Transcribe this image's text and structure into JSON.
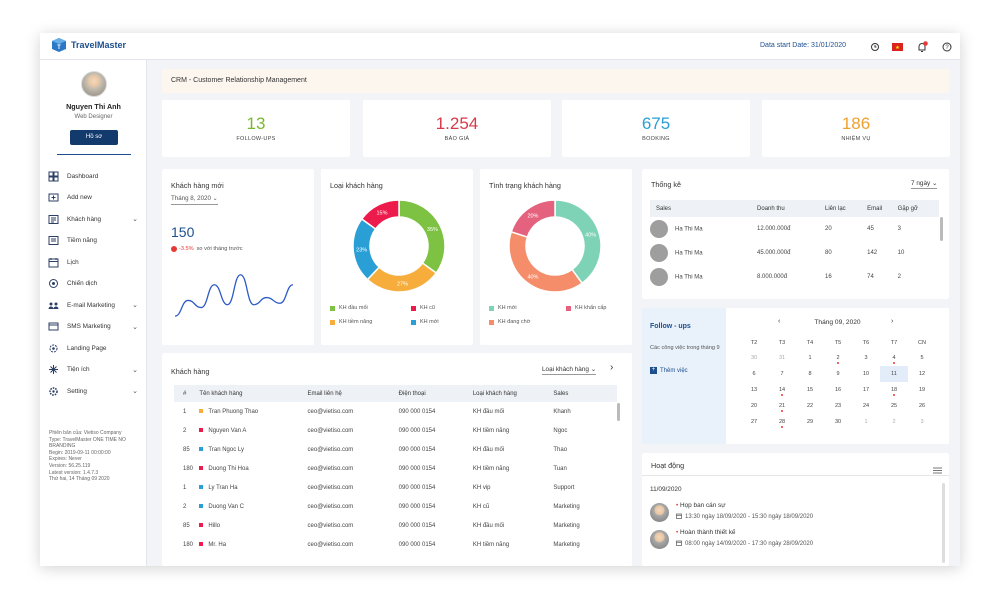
{
  "app": {
    "name": "TravelMaster",
    "data_start": "Data start Date: 31/01/2020"
  },
  "user": {
    "name": "Nguyen Thi Anh",
    "role": "Web Designer",
    "profile_btn": "Hồ sơ"
  },
  "nav": [
    {
      "label": "Dashboard",
      "icon": "dashboard-icon",
      "chev": false
    },
    {
      "label": "Add new",
      "icon": "add-new-icon",
      "chev": false
    },
    {
      "label": "Khách hàng",
      "icon": "customers-icon",
      "chev": true
    },
    {
      "label": "Tiềm năng",
      "icon": "potential-icon",
      "chev": false
    },
    {
      "label": "Lịch",
      "icon": "calendar-icon",
      "chev": false
    },
    {
      "label": "Chiến dịch",
      "icon": "campaign-icon",
      "chev": false
    },
    {
      "label": "E-mail Marketing",
      "icon": "email-icon",
      "chev": true
    },
    {
      "label": "SMS Marketing",
      "icon": "sms-icon",
      "chev": true
    },
    {
      "label": "Landing Page",
      "icon": "landing-icon",
      "chev": false
    },
    {
      "label": "Tiện ích",
      "icon": "utilities-icon",
      "chev": true
    },
    {
      "label": "Setting",
      "icon": "setting-icon",
      "chev": true
    }
  ],
  "side_info": [
    "Phiên bản của: Vietiso Company",
    "Type: TravelMaster ONE TIME NO",
    "BRANDING",
    "Begin: 2019-09-11 00:00:00",
    "Expires: Never",
    "Version: 56.25.119",
    "Latest version: 1.4.7.3",
    "Thứ hai, 14 Tháng 09 2020"
  ],
  "banner": "CRM - Customer Relationship Management",
  "stats": [
    {
      "value": "13",
      "label": "FOLLOW-UPS",
      "color": "#7cb82f"
    },
    {
      "value": "1.254",
      "label": "BÁO GIÁ",
      "color": "#d93a4a"
    },
    {
      "value": "675",
      "label": "BOOKING",
      "color": "#2a9fd6"
    },
    {
      "value": "186",
      "label": "NHIỆM VỤ",
      "color": "#f0a030"
    }
  ],
  "new_customers": {
    "title": "Khách hàng mới",
    "month": "Tháng 8, 2020",
    "value": "150",
    "change": "-3.5%",
    "change_text": "so với tháng trước",
    "sparkline": [
      18,
      40,
      30,
      62,
      34,
      76,
      34,
      44,
      36,
      62
    ]
  },
  "chart_data": [
    {
      "type": "pie",
      "title": "Loại khách hàng",
      "series": [
        {
          "name": "KH đầu mối",
          "value": 35,
          "label": "35%",
          "color": "#7dc242"
        },
        {
          "name": "KH tiềm năng",
          "value": 27,
          "label": "27%",
          "color": "#f6ad3c"
        },
        {
          "name": "KH mới",
          "value": 23,
          "label": "23%",
          "color": "#2a9fd6"
        },
        {
          "name": "KH cũ",
          "value": 15,
          "label": "15%",
          "color": "#ec1b4b"
        }
      ]
    },
    {
      "type": "pie",
      "title": "Tình trạng khách hàng",
      "series": [
        {
          "name": "KH mới",
          "value": 40,
          "label": "40%",
          "color": "#7ed3b7"
        },
        {
          "name": "KH đang chờ",
          "value": 40,
          "label": "40%",
          "color": "#f58d6b"
        },
        {
          "name": "KH khẩn cấp",
          "value": 20,
          "label": "20%",
          "color": "#e5627e"
        }
      ]
    }
  ],
  "stats_table": {
    "title": "Thống kê",
    "period": "7 ngày",
    "headers": [
      "Sales",
      "Doanh thu",
      "Liên lạc",
      "Email",
      "Gặp gỡ"
    ],
    "rows": [
      {
        "name": "Ha Thi Ma",
        "revenue": "12.000.000đ",
        "contacts": "20",
        "email": "45",
        "meet": "3"
      },
      {
        "name": "Ha Thi Ma",
        "revenue": "45.000.000đ",
        "contacts": "80",
        "email": "142",
        "meet": "10"
      },
      {
        "name": "Ha Thi Ma",
        "revenue": "8.000.000đ",
        "contacts": "16",
        "email": "74",
        "meet": "2"
      }
    ]
  },
  "followup": {
    "title": "Follow - ups",
    "text": "Các công việc trong tháng 9",
    "add": "Thêm việc"
  },
  "calendar": {
    "month": "Tháng 09, 2020",
    "days": [
      "T2",
      "T3",
      "T4",
      "T5",
      "T6",
      "T7",
      "CN"
    ],
    "weeks": [
      [
        {
          "d": "30",
          "m": true
        },
        {
          "d": "31",
          "m": true
        },
        {
          "d": "1"
        },
        {
          "d": "2",
          "e": true
        },
        {
          "d": "3"
        },
        {
          "d": "4",
          "e": true
        },
        {
          "d": "5"
        }
      ],
      [
        {
          "d": "6"
        },
        {
          "d": "7"
        },
        {
          "d": "8"
        },
        {
          "d": "9"
        },
        {
          "d": "10"
        },
        {
          "d": "11",
          "s": true
        },
        {
          "d": "12"
        }
      ],
      [
        {
          "d": "13"
        },
        {
          "d": "14",
          "e": true
        },
        {
          "d": "15"
        },
        {
          "d": "16"
        },
        {
          "d": "17"
        },
        {
          "d": "18",
          "e": true
        },
        {
          "d": "19"
        }
      ],
      [
        {
          "d": "20"
        },
        {
          "d": "21",
          "e": true
        },
        {
          "d": "22"
        },
        {
          "d": "23"
        },
        {
          "d": "24"
        },
        {
          "d": "25"
        },
        {
          "d": "26"
        }
      ],
      [
        {
          "d": "27"
        },
        {
          "d": "28",
          "e": true
        },
        {
          "d": "29"
        },
        {
          "d": "30"
        },
        {
          "d": "1",
          "m": true
        },
        {
          "d": "2",
          "m": true
        },
        {
          "d": "3",
          "m": true
        }
      ]
    ]
  },
  "customers": {
    "title": "Khách hàng",
    "filter": "Loại khách hàng",
    "headers": [
      "#",
      "Tên khách hàng",
      "Email liên hệ",
      "Điện thoại",
      "Loại khách hàng",
      "Sales"
    ],
    "rows": [
      {
        "no": "1",
        "name": "Tran Phuong Thao",
        "email": "ceo@vietiso.com",
        "phone": "090 000 0154",
        "type": "KH đầu mối",
        "sales": "Khanh",
        "color": "#f6ad3c"
      },
      {
        "no": "2",
        "name": "Nguyen Van A",
        "email": "ceo@vietiso.com",
        "phone": "090 000 0154",
        "type": "KH tiềm năng",
        "sales": "Ngoc",
        "color": "#ec1b4b"
      },
      {
        "no": "85",
        "name": "Tran Ngoc Ly",
        "email": "ceo@vietiso.com",
        "phone": "090 000 0154",
        "type": "KH đầu mối",
        "sales": "Thao",
        "color": "#2a9fd6"
      },
      {
        "no": "180",
        "name": "Duong Thi Hoa",
        "email": "ceo@vietiso.com",
        "phone": "090 000 0154",
        "type": "KH tiềm năng",
        "sales": "Tuan",
        "color": "#ec1b4b"
      },
      {
        "no": "1",
        "name": "Ly Tran Ha",
        "email": "ceo@vietiso.com",
        "phone": "090 000 0154",
        "type": "KH vip",
        "sales": "Support",
        "color": "#2a9fd6"
      },
      {
        "no": "2",
        "name": "Duong Van C",
        "email": "ceo@vietiso.com",
        "phone": "090 000 0154",
        "type": "KH cũ",
        "sales": "Marketing",
        "color": "#2a9fd6"
      },
      {
        "no": "85",
        "name": "Hillo",
        "email": "ceo@vietiso.com",
        "phone": "090 000 0154",
        "type": "KH đầu mối",
        "sales": "Marketing",
        "color": "#ec1b4b"
      },
      {
        "no": "180",
        "name": "Mr. Ha",
        "email": "ceo@vietiso.com",
        "phone": "090 000 0154",
        "type": "KH tiềm năng",
        "sales": "Marketing",
        "color": "#ec1b4b"
      }
    ]
  },
  "activity": {
    "title": "Hoạt động",
    "date": "11/09/2020",
    "items": [
      {
        "title": "Họp ban cán sự",
        "time": "13:30 ngày 18/09/2020 - 15:30 ngày 18/09/2020"
      },
      {
        "title": "Hoàn thành thiết kế",
        "time": "08:00 ngày 14/09/2020 - 17:30 ngày 28/09/2020"
      }
    ]
  }
}
